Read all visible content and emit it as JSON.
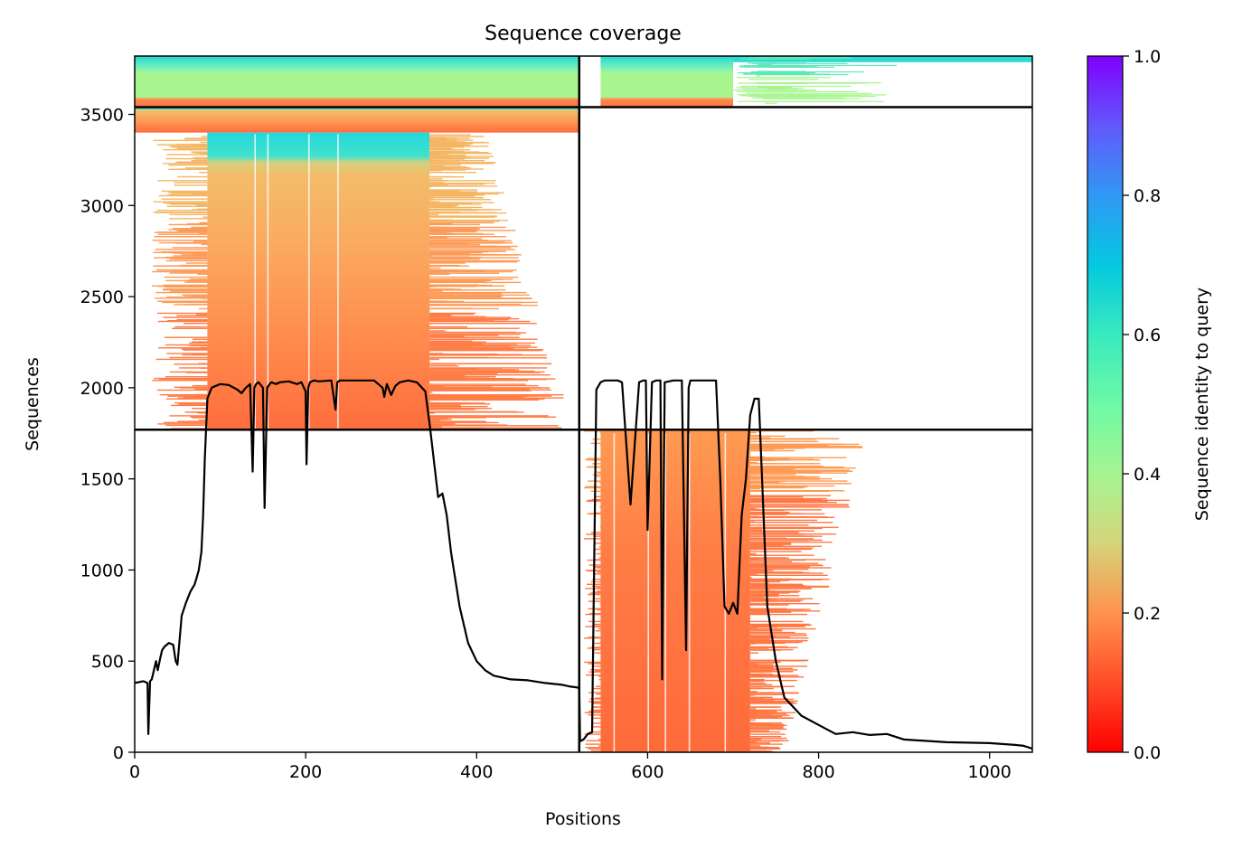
{
  "chart_data": {
    "type": "heatmap",
    "title": "Sequence coverage",
    "xlabel": "Positions",
    "ylabel": "Sequences",
    "xlim": [
      0,
      1050
    ],
    "ylim": [
      0,
      3820
    ],
    "xticks": [
      0,
      200,
      400,
      600,
      800,
      1000
    ],
    "yticks": [
      0,
      500,
      1000,
      1500,
      2000,
      2500,
      3000,
      3500
    ],
    "colorbar": {
      "label": "Sequence identity to query",
      "colormap": "rainbow_r",
      "range": [
        0,
        1
      ],
      "ticks": [
        "0.0",
        "0.2",
        "0.4",
        "0.6",
        "0.8",
        "1.0"
      ]
    },
    "separators": {
      "vertical_x": 520,
      "horizontal_y": [
        1770,
        3540
      ]
    },
    "blocks": [
      {
        "name": "paired-both",
        "y_range": [
          3540,
          3820
        ],
        "identity_top": 0.62,
        "identity_bottom": 0.2
      },
      {
        "name": "chain-A-only",
        "y_range": [
          1770,
          3540
        ],
        "identity_top": 0.62,
        "identity_bottom": 0.15
      },
      {
        "name": "chain-B-only",
        "y_range": [
          0,
          1770
        ],
        "identity_top": 0.22,
        "identity_bottom": 0.15
      }
    ],
    "coverage_line": {
      "x": [
        0,
        10,
        15,
        16,
        18,
        20,
        25,
        27,
        30,
        32,
        35,
        40,
        45,
        48,
        50,
        55,
        60,
        65,
        70,
        72,
        75,
        78,
        80,
        82,
        85,
        90,
        95,
        100,
        110,
        120,
        125,
        130,
        135,
        138,
        140,
        142,
        145,
        150,
        152,
        155,
        158,
        160,
        165,
        170,
        180,
        190,
        195,
        200,
        201,
        203,
        205,
        210,
        215,
        230,
        235,
        237,
        240,
        245,
        260,
        280,
        290,
        292,
        295,
        300,
        305,
        310,
        320,
        330,
        340,
        345,
        350,
        355,
        360,
        365,
        370,
        380,
        390,
        400,
        410,
        420,
        440,
        460,
        480,
        500,
        510,
        518,
        520,
        521,
        525,
        530,
        535,
        540,
        545,
        550,
        560,
        565,
        570,
        580,
        590,
        595,
        598,
        600,
        605,
        610,
        615,
        617,
        620,
        630,
        640,
        645,
        648,
        650,
        660,
        670,
        680,
        685,
        690,
        695,
        700,
        705,
        710,
        715,
        720,
        725,
        730,
        740,
        750,
        760,
        780,
        800,
        820,
        840,
        860,
        880,
        900,
        950,
        1000,
        1030,
        1040,
        1050
      ],
      "y": [
        380,
        390,
        380,
        100,
        390,
        400,
        500,
        450,
        520,
        560,
        580,
        600,
        590,
        500,
        480,
        750,
        820,
        880,
        920,
        950,
        1000,
        1100,
        1300,
        1600,
        1940,
        2000,
        2010,
        2020,
        2015,
        1990,
        1970,
        2000,
        2020,
        1540,
        2000,
        2020,
        2030,
        2000,
        1340,
        2000,
        2020,
        2030,
        2020,
        2030,
        2035,
        2020,
        2030,
        1980,
        1580,
        2000,
        2030,
        2040,
        2035,
        2040,
        1880,
        2030,
        2040,
        2040,
        2040,
        2040,
        2000,
        1950,
        2020,
        1960,
        2010,
        2030,
        2040,
        2030,
        1980,
        1800,
        1600,
        1400,
        1420,
        1300,
        1100,
        800,
        600,
        500,
        450,
        420,
        400,
        395,
        380,
        370,
        360,
        355,
        350,
        60,
        70,
        100,
        110,
        1990,
        2030,
        2040,
        2040,
        2040,
        2030,
        1360,
        2030,
        2040,
        2040,
        1220,
        2030,
        2040,
        2040,
        400,
        2030,
        2040,
        2040,
        560,
        2000,
        2040,
        2040,
        2040,
        2040,
        1500,
        800,
        760,
        820,
        760,
        1300,
        1500,
        1850,
        1940,
        1940,
        800,
        500,
        300,
        200,
        150,
        100,
        110,
        95,
        100,
        70,
        55,
        50,
        40,
        35,
        20
      ]
    }
  }
}
